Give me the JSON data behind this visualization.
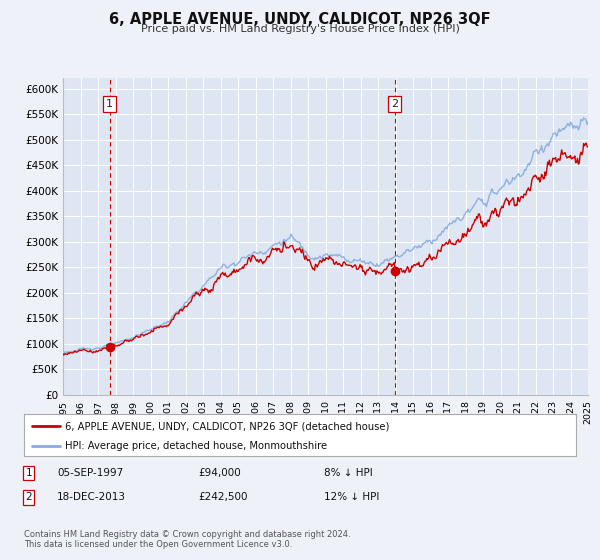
{
  "title": "6, APPLE AVENUE, UNDY, CALDICOT, NP26 3QF",
  "subtitle": "Price paid vs. HM Land Registry's House Price Index (HPI)",
  "bg_color": "#eef2f8",
  "plot_bg_color": "#dde6f2",
  "grid_color": "#ffffff",
  "red_line_color": "#cc0000",
  "blue_line_color": "#88aadd",
  "vline_color": "#cc0000",
  "marker_color": "#cc0000",
  "sale1_year": 1997.67,
  "sale1_price": 94000,
  "sale2_year": 2013.96,
  "sale2_price": 242500,
  "ylim_min": 0,
  "ylim_max": 620000,
  "yticks": [
    0,
    50000,
    100000,
    150000,
    200000,
    250000,
    300000,
    350000,
    400000,
    450000,
    500000,
    550000,
    600000
  ],
  "ytick_labels": [
    "£0",
    "£50K",
    "£100K",
    "£150K",
    "£200K",
    "£250K",
    "£300K",
    "£350K",
    "£400K",
    "£450K",
    "£500K",
    "£550K",
    "£600K"
  ],
  "xmin": 1995,
  "xmax": 2025,
  "legend_red_label": "6, APPLE AVENUE, UNDY, CALDICOT, NP26 3QF (detached house)",
  "legend_blue_label": "HPI: Average price, detached house, Monmouthshire",
  "row1_num": "1",
  "row1_date": "05-SEP-1997",
  "row1_price": "£94,000",
  "row1_pct": "8% ↓ HPI",
  "row2_num": "2",
  "row2_date": "18-DEC-2013",
  "row2_price": "£242,500",
  "row2_pct": "12% ↓ HPI",
  "footer1": "Contains HM Land Registry data © Crown copyright and database right 2024.",
  "footer2": "This data is licensed under the Open Government Licence v3.0."
}
